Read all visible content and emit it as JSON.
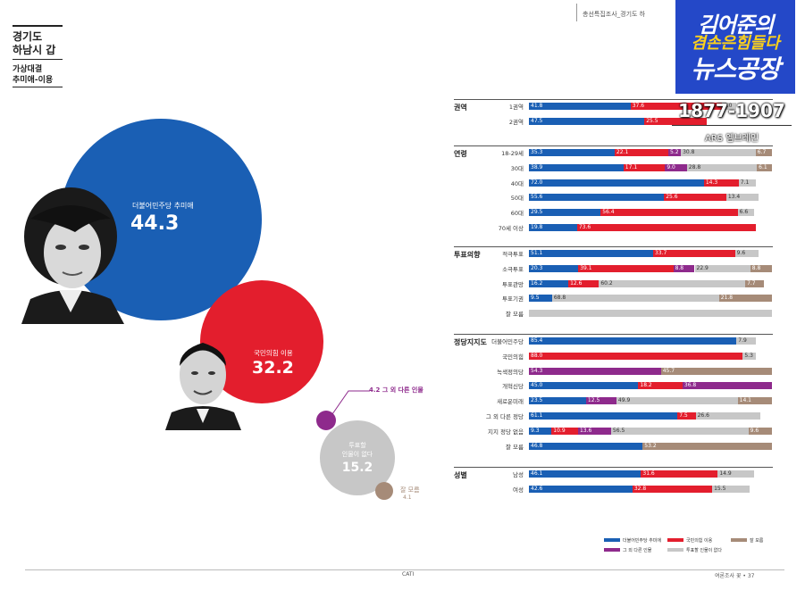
{
  "header": {
    "region": "경기도",
    "district": "하남시 갑",
    "matchup_title": "가상대결",
    "matchup_names": "추미애-이용"
  },
  "top_header": "총선특집조사_경기도 하",
  "overlay": {
    "line1": "김어준의",
    "line2": "겸손은힘들다",
    "line3": "뉴스공장",
    "sample": "1877-1907",
    "method": "ARS 엠브레인"
  },
  "bubbles": [
    {
      "name": "더불어민주당 추미애",
      "value": "44.3",
      "color": "#1a5fb4"
    },
    {
      "name": "국민의힘 이용",
      "value": "32.2",
      "color": "#e31e2d"
    },
    {
      "name": "4.2 그 외 다른 인물",
      "value": "4.2",
      "color": "#8e2a8c"
    },
    {
      "name": "투표할\n인물이 없다",
      "value": "15.2",
      "color": "#c7c7c7"
    },
    {
      "name": "잘 모름",
      "value": "4.1",
      "color": "#a68b78"
    }
  ],
  "chart_data": {
    "type": "bar",
    "stacked": true,
    "orientation": "horizontal",
    "series": [
      {
        "name": "더불어민주당 추미애",
        "color": "#1a5fb4"
      },
      {
        "name": "국민의힘 이용",
        "color": "#e31e2d"
      },
      {
        "name": "그 외 다른 인물",
        "color": "#8e2a8c"
      },
      {
        "name": "투표할 인물이 없다",
        "color": "#c7c7c7"
      },
      {
        "name": "잘 모름",
        "color": "#a68b78"
      }
    ],
    "groups": [
      {
        "label": "권역",
        "rows": [
          {
            "label": "1권역",
            "values": [
              41.8,
              37.6,
              0,
              6.0,
              0
            ],
            "labels": [
              "41.8",
              "37.6",
              "",
              "6.0",
              ""
            ]
          },
          {
            "label": "2권역",
            "values": [
              47.5,
              25.5,
              0,
              0,
              0
            ],
            "labels": [
              "47.5",
              "25.5",
              "",
              "",
              ""
            ]
          }
        ]
      },
      {
        "label": "연령",
        "rows": [
          {
            "label": "18-29세",
            "values": [
              35.3,
              22.1,
              5.2,
              30.8,
              6.7
            ],
            "labels": [
              "35.3",
              "22.1",
              "5.2",
              "30.8",
              "6.7"
            ]
          },
          {
            "label": "30대",
            "values": [
              38.9,
              17.1,
              9.0,
              28.8,
              6.1
            ],
            "labels": [
              "38.9",
              "17.1",
              "9.0",
              "28.8",
              "6.1"
            ]
          },
          {
            "label": "40대",
            "values": [
              72.0,
              14.3,
              0,
              7.1,
              0
            ],
            "labels": [
              "72.0",
              "14.3",
              "",
              "7.1",
              ""
            ]
          },
          {
            "label": "50대",
            "values": [
              55.6,
              25.6,
              0,
              13.4,
              0
            ],
            "labels": [
              "55.6",
              "25.6",
              "",
              "13.4",
              ""
            ]
          },
          {
            "label": "60대",
            "values": [
              29.5,
              56.4,
              0,
              6.6,
              0
            ],
            "labels": [
              "29.5",
              "56.4",
              "",
              "6.6",
              ""
            ]
          },
          {
            "label": "70세 이상",
            "values": [
              19.8,
              73.6,
              0,
              0,
              0
            ],
            "labels": [
              "19.8",
              "73.6",
              "",
              "",
              ""
            ]
          }
        ]
      },
      {
        "label": "투표의향",
        "rows": [
          {
            "label": "적극투표",
            "values": [
              51.1,
              33.7,
              0,
              9.6,
              0
            ],
            "labels": [
              "51.1",
              "33.7",
              "",
              "9.6",
              ""
            ]
          },
          {
            "label": "소극투표",
            "values": [
              20.3,
              39.1,
              8.8,
              22.9,
              8.8
            ],
            "labels": [
              "20.3",
              "39.1",
              "8.8",
              "22.9",
              "8.8"
            ]
          },
          {
            "label": "투표관망",
            "values": [
              16.2,
              12.6,
              0,
              60.2,
              7.7
            ],
            "labels": [
              "16.2",
              "12.6",
              "",
              "60.2",
              "7.7"
            ]
          },
          {
            "label": "투표기권",
            "values": [
              9.5,
              0,
              0,
              68.8,
              21.8
            ],
            "labels": [
              "9.5",
              "",
              "",
              "68.8",
              "21.8"
            ]
          },
          {
            "label": "잘 모름",
            "values": [
              0,
              0,
              0,
              100,
              0
            ],
            "labels": [
              "",
              "",
              "",
              "",
              ""
            ]
          }
        ]
      },
      {
        "label": "정당지지도",
        "rows": [
          {
            "label": "더불어민주당",
            "values": [
              85.4,
              0,
              0,
              7.9,
              0
            ],
            "labels": [
              "85.4",
              "",
              "",
              "7.9",
              ""
            ]
          },
          {
            "label": "국민의힘",
            "values": [
              0,
              88.0,
              0,
              5.3,
              0
            ],
            "labels": [
              "",
              "88.0",
              "",
              "5.3",
              ""
            ]
          },
          {
            "label": "녹색정의당",
            "values": [
              0,
              0,
              54.3,
              0,
              45.7
            ],
            "labels": [
              "",
              "",
              "54.3",
              "",
              "45.7"
            ]
          },
          {
            "label": "개혁신당",
            "values": [
              45.0,
              18.2,
              36.8,
              0,
              0
            ],
            "labels": [
              "45.0",
              "18.2",
              "36.8",
              "",
              ""
            ]
          },
          {
            "label": "새로운미래",
            "values": [
              23.5,
              0,
              12.5,
              49.9,
              14.1
            ],
            "labels": [
              "23.5",
              "",
              "12.5",
              "49.9",
              "14.1"
            ]
          },
          {
            "label": "그 외 다른 정당",
            "values": [
              61.1,
              7.5,
              0,
              26.6,
              0
            ],
            "labels": [
              "61.1",
              "7.5",
              "",
              "26.6",
              ""
            ]
          },
          {
            "label": "지지 정당 없음",
            "values": [
              9.3,
              10.9,
              13.6,
              56.5,
              9.6
            ],
            "labels": [
              "9.3",
              "10.9",
              "13.6",
              "56.5",
              "9.6"
            ]
          },
          {
            "label": "잘 모름",
            "values": [
              46.8,
              0,
              0,
              0,
              53.2
            ],
            "labels": [
              "46.8",
              "",
              "",
              "",
              "53.2"
            ]
          }
        ]
      },
      {
        "label": "성별",
        "rows": [
          {
            "label": "남성",
            "values": [
              46.1,
              31.6,
              0,
              14.9,
              0
            ],
            "labels": [
              "46.1",
              "31.6",
              "",
              "14.9",
              ""
            ]
          },
          {
            "label": "여성",
            "values": [
              42.6,
              32.8,
              0,
              15.5,
              0
            ],
            "labels": [
              "42.6",
              "32.8",
              "",
              "15.5",
              ""
            ]
          }
        ]
      }
    ]
  },
  "legend": [
    {
      "label": "더불어민주당 추미애",
      "color": "#1a5fb4"
    },
    {
      "label": "국민의힘 이용",
      "color": "#e31e2d"
    },
    {
      "label": "잘 모름",
      "color": "#a68b78"
    },
    {
      "label": "그 외 다른 인물",
      "color": "#8e2a8c"
    },
    {
      "label": "투표할 인물이 없다",
      "color": "#c7c7c7"
    }
  ],
  "footer": {
    "center": "CATI",
    "right": "여론조사 꽃 • 37"
  }
}
